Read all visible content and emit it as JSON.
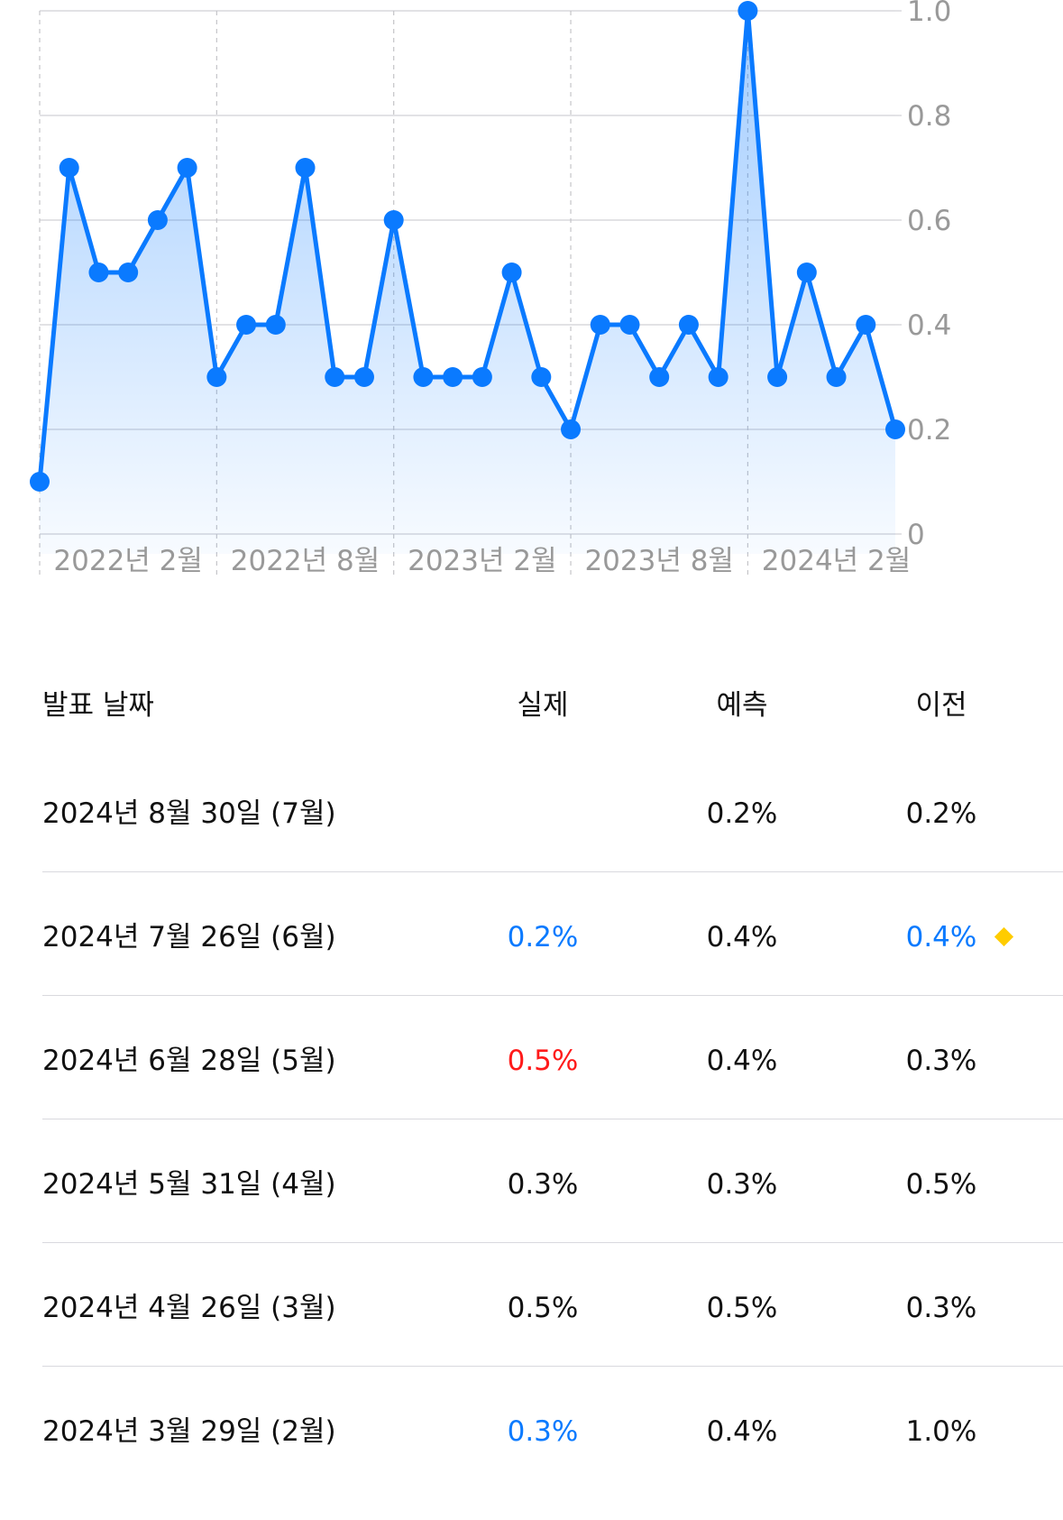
{
  "colors": {
    "line": "#0a7aff",
    "blue_value": "#0a7aff",
    "red_value": "#ff1a1a",
    "neutral_value": "#111111",
    "header_text": "#111111",
    "tick_text": "#999999",
    "diamond": "#ffcc00"
  },
  "chart_data": {
    "type": "area",
    "y_axis_position": "right",
    "ylim": [
      0,
      1.0
    ],
    "y_ticks": [
      "1.0",
      "0.8",
      "0.6",
      "0.4",
      "0.2",
      "0"
    ],
    "x_tick_labels": [
      "2022년 2월",
      "2022년 8월",
      "2023년 2월",
      "2023년 8월",
      "2024년 2월"
    ],
    "grid": true,
    "values": [
      0.1,
      0.7,
      0.5,
      0.5,
      0.6,
      0.7,
      0.3,
      0.4,
      0.4,
      0.7,
      0.3,
      0.3,
      0.6,
      0.3,
      0.3,
      0.3,
      0.5,
      0.3,
      0.2,
      0.4,
      0.4,
      0.3,
      0.4,
      0.3,
      1.0,
      0.3,
      0.5,
      0.3,
      0.4,
      0.2
    ]
  },
  "table": {
    "headers": {
      "date": "발표 날짜",
      "actual": "실제",
      "forecast": "예측",
      "previous": "이전"
    },
    "rows": [
      {
        "date": "2024년 8월 30일 (7월)",
        "actual": "",
        "actual_color": "neutral",
        "forecast": "0.2%",
        "previous": "0.2%",
        "previous_color": "neutral",
        "revised": false
      },
      {
        "date": "2024년 7월 26일 (6월)",
        "actual": "0.2%",
        "actual_color": "blue",
        "forecast": "0.4%",
        "previous": "0.4%",
        "previous_color": "blue",
        "revised": true
      },
      {
        "date": "2024년 6월 28일 (5월)",
        "actual": "0.5%",
        "actual_color": "red",
        "forecast": "0.4%",
        "previous": "0.3%",
        "previous_color": "neutral",
        "revised": false
      },
      {
        "date": "2024년 5월 31일 (4월)",
        "actual": "0.3%",
        "actual_color": "neutral",
        "forecast": "0.3%",
        "previous": "0.5%",
        "previous_color": "neutral",
        "revised": false
      },
      {
        "date": "2024년 4월 26일 (3월)",
        "actual": "0.5%",
        "actual_color": "neutral",
        "forecast": "0.5%",
        "previous": "0.3%",
        "previous_color": "neutral",
        "revised": false
      },
      {
        "date": "2024년 3월 29일 (2월)",
        "actual": "0.3%",
        "actual_color": "blue",
        "forecast": "0.4%",
        "previous": "1.0%",
        "previous_color": "neutral",
        "revised": false
      }
    ]
  }
}
